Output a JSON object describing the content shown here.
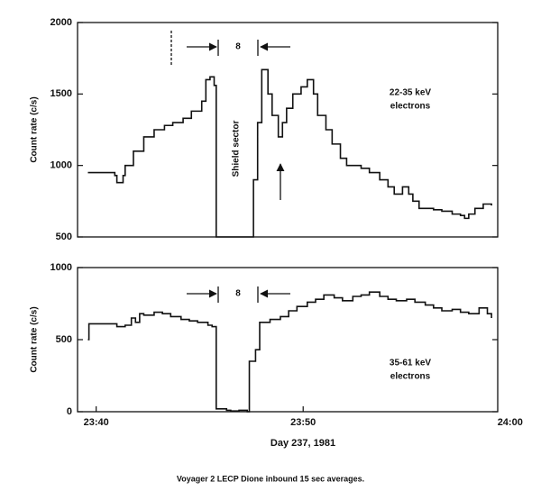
{
  "chart_data": [
    {
      "type": "line",
      "ylabel": "Count rate (c/s)",
      "x": [
        -0.4,
        0.9,
        1.0,
        1.3,
        1.4,
        1.8,
        2.3,
        2.8,
        3.3,
        3.7,
        4.2,
        4.6,
        5.1,
        5.3,
        5.5,
        5.7,
        5.8,
        7.4,
        7.6,
        7.8,
        8.0,
        8.3,
        8.5,
        8.8,
        9.0,
        9.2,
        9.5,
        9.9,
        10.2,
        10.5,
        10.7,
        11.1,
        11.4,
        11.8,
        12.1,
        12.8,
        13.2,
        13.7,
        14.1,
        14.4,
        14.8,
        15.1,
        15.3,
        15.6,
        16.3,
        16.7,
        17.2,
        17.6,
        17.8,
        18.0,
        18.3,
        18.7,
        19.1
      ],
      "series": [
        {
          "color": "#111111",
          "values": [
            950,
            930,
            880,
            930,
            1000,
            1100,
            1200,
            1250,
            1280,
            1300,
            1330,
            1380,
            1450,
            1600,
            1620,
            1560,
            500,
            500,
            900,
            1300,
            1670,
            1500,
            1350,
            1200,
            1300,
            1400,
            1500,
            1550,
            1600,
            1500,
            1350,
            1250,
            1150,
            1050,
            1000,
            980,
            950,
            900,
            850,
            800,
            850,
            800,
            750,
            700,
            690,
            680,
            660,
            650,
            630,
            660,
            700,
            730,
            720
          ]
        }
      ],
      "xlim": [
        -0.9,
        19.4
      ],
      "ylim": [
        500,
        2000
      ],
      "yticks": [
        500,
        1000,
        1500,
        2000
      ],
      "annotations": [
        {
          "text": "8"
        },
        {
          "text": "Shield sector"
        },
        {
          "text": "22-35 keV"
        },
        {
          "text": "electrons"
        }
      ]
    },
    {
      "type": "line",
      "ylabel": "Count rate (c/s)",
      "xlabel": "Day 237, 1981",
      "x": [
        -0.4,
        -0.35,
        1.0,
        1.4,
        1.7,
        1.9,
        2.1,
        2.3,
        2.8,
        3.2,
        3.6,
        4.1,
        4.5,
        4.9,
        5.4,
        5.6,
        5.8,
        6.3,
        6.5,
        6.9,
        7.3,
        7.4,
        7.7,
        7.9,
        8.4,
        8.9,
        9.3,
        9.7,
        10.2,
        10.6,
        11.0,
        11.5,
        11.9,
        12.4,
        12.8,
        13.2,
        13.7,
        14.1,
        14.5,
        15.0,
        15.4,
        15.9,
        16.3,
        16.7,
        17.2,
        17.6,
        18.0,
        18.5,
        18.9,
        19.1
      ],
      "series": [
        {
          "color": "#111111",
          "values": [
            500,
            610,
            590,
            600,
            650,
            620,
            680,
            670,
            690,
            680,
            660,
            640,
            630,
            620,
            600,
            590,
            20,
            10,
            5,
            10,
            0,
            350,
            430,
            620,
            640,
            660,
            700,
            730,
            760,
            780,
            810,
            790,
            770,
            800,
            810,
            830,
            800,
            780,
            770,
            780,
            760,
            740,
            720,
            700,
            710,
            690,
            680,
            720,
            680,
            650
          ]
        }
      ],
      "xlim": [
        -0.9,
        19.4
      ],
      "ylim": [
        0,
        1000
      ],
      "yticks": [
        0,
        500,
        1000
      ],
      "xticks": [
        {
          "value": 0,
          "label": "23:40"
        },
        {
          "value": 10,
          "label": "23:50"
        },
        {
          "value": 20,
          "label": "24:00"
        }
      ],
      "annotations": [
        {
          "text": "8"
        },
        {
          "text": "35-61 keV"
        },
        {
          "text": "electrons"
        }
      ]
    }
  ],
  "caption": "Voyager 2 LECP Dione inbound 15 sec averages."
}
